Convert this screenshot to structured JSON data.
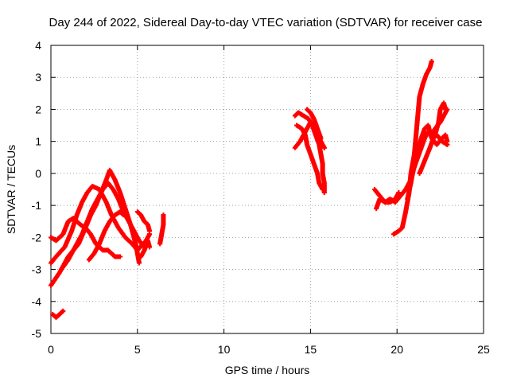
{
  "chart_data": {
    "type": "scatter",
    "title": "Day 244 of 2022, Sidereal Day-to-day VTEC variation (SDTVAR) for receiver case",
    "xlabel": "GPS time / hours",
    "ylabel": "SDTVAR / TECUs",
    "xlim": [
      0,
      25
    ],
    "ylim": [
      -5,
      4
    ],
    "xticks": [
      "0",
      "5",
      "10",
      "15",
      "20",
      "25"
    ],
    "yticks": [
      "-5",
      "-4",
      "-3",
      "-2",
      "-1",
      "0",
      "1",
      "2",
      "3",
      "4"
    ],
    "grid": true,
    "marker": "+",
    "color": "#ff0000",
    "tracks": [
      [
        [
          0.0,
          -3.5
        ],
        [
          0.5,
          -3.1
        ],
        [
          1.0,
          -2.6
        ],
        [
          1.6,
          -2.2
        ],
        [
          2.0,
          -1.7
        ],
        [
          2.3,
          -1.3
        ],
        [
          2.6,
          -1.0
        ],
        [
          2.9,
          -0.6
        ],
        [
          3.2,
          -0.2
        ],
        [
          3.4,
          0.1
        ],
        [
          3.7,
          -0.2
        ],
        [
          4.0,
          -0.6
        ],
        [
          4.3,
          -1.1
        ],
        [
          4.6,
          -1.6
        ],
        [
          4.9,
          -2.2
        ],
        [
          5.1,
          -2.8
        ]
      ],
      [
        [
          0.0,
          -2.8
        ],
        [
          0.3,
          -2.6
        ],
        [
          0.8,
          -2.3
        ],
        [
          1.2,
          -1.8
        ],
        [
          1.5,
          -1.3
        ],
        [
          1.8,
          -0.9
        ],
        [
          2.1,
          -0.6
        ],
        [
          2.4,
          -0.4
        ],
        [
          2.8,
          -0.5
        ],
        [
          3.2,
          -0.9
        ],
        [
          3.5,
          -1.3
        ],
        [
          3.9,
          -1.7
        ],
        [
          4.3,
          -2.0
        ],
        [
          4.7,
          -2.2
        ],
        [
          5.0,
          -2.4
        ],
        [
          5.5,
          -2.1
        ],
        [
          5.7,
          -1.9
        ]
      ],
      [
        [
          0.0,
          -2.0
        ],
        [
          0.3,
          -2.1
        ],
        [
          0.7,
          -1.9
        ],
        [
          1.0,
          -1.5
        ],
        [
          1.3,
          -1.4
        ],
        [
          1.7,
          -1.6
        ],
        [
          2.0,
          -1.7
        ],
        [
          2.3,
          -1.9
        ],
        [
          2.6,
          -2.2
        ],
        [
          3.0,
          -2.4
        ],
        [
          3.3,
          -2.4
        ],
        [
          3.7,
          -2.6
        ],
        [
          4.0,
          -2.6
        ]
      ],
      [
        [
          0.6,
          -3.0
        ],
        [
          1.0,
          -2.7
        ],
        [
          1.4,
          -2.3
        ],
        [
          1.8,
          -1.9
        ],
        [
          2.1,
          -1.5
        ],
        [
          2.4,
          -1.1
        ],
        [
          2.7,
          -0.8
        ],
        [
          3.0,
          -0.5
        ],
        [
          3.3,
          -0.3
        ],
        [
          3.6,
          -0.5
        ],
        [
          3.9,
          -0.8
        ],
        [
          4.2,
          -1.2
        ],
        [
          4.5,
          -1.5
        ],
        [
          4.8,
          -1.8
        ],
        [
          5.1,
          -2.1
        ],
        [
          5.4,
          -2.3
        ]
      ],
      [
        [
          2.2,
          -2.7
        ],
        [
          2.5,
          -2.5
        ],
        [
          2.8,
          -2.2
        ],
        [
          3.1,
          -1.8
        ],
        [
          3.4,
          -1.5
        ],
        [
          3.7,
          -1.3
        ],
        [
          4.0,
          -1.2
        ],
        [
          4.2,
          -1.3
        ]
      ],
      [
        [
          0.1,
          -4.4
        ],
        [
          0.3,
          -4.5
        ],
        [
          0.5,
          -4.4
        ],
        [
          0.7,
          -4.3
        ]
      ],
      [
        [
          5.0,
          -1.2
        ],
        [
          5.2,
          -1.3
        ],
        [
          5.4,
          -1.5
        ],
        [
          5.6,
          -1.6
        ],
        [
          5.7,
          -1.8
        ]
      ],
      [
        [
          5.2,
          -2.6
        ],
        [
          5.4,
          -2.4
        ],
        [
          5.6,
          -2.1
        ],
        [
          5.7,
          -2.3
        ]
      ],
      [
        [
          6.3,
          -2.2
        ],
        [
          6.4,
          -1.9
        ],
        [
          6.5,
          -1.6
        ],
        [
          6.5,
          -1.3
        ]
      ],
      [
        [
          14.1,
          1.8
        ],
        [
          14.3,
          1.9
        ],
        [
          14.6,
          1.8
        ],
        [
          14.9,
          1.7
        ],
        [
          15.1,
          1.5
        ],
        [
          15.3,
          1.2
        ],
        [
          15.5,
          0.9
        ],
        [
          15.6,
          0.6
        ],
        [
          15.7,
          0.3
        ],
        [
          15.7,
          0.0
        ],
        [
          15.8,
          -0.3
        ],
        [
          15.8,
          -0.6
        ]
      ],
      [
        [
          14.2,
          1.5
        ],
        [
          14.5,
          1.4
        ],
        [
          14.7,
          1.2
        ],
        [
          14.8,
          0.9
        ],
        [
          15.0,
          0.6
        ],
        [
          15.2,
          0.3
        ],
        [
          15.4,
          0.0
        ],
        [
          15.5,
          -0.3
        ],
        [
          15.7,
          -0.5
        ]
      ],
      [
        [
          14.1,
          0.8
        ],
        [
          14.4,
          1.0
        ],
        [
          14.6,
          1.2
        ],
        [
          14.8,
          1.4
        ],
        [
          15.0,
          1.6
        ],
        [
          15.2,
          1.5
        ],
        [
          15.4,
          1.3
        ],
        [
          15.6,
          1.0
        ],
        [
          15.8,
          0.8
        ]
      ],
      [
        [
          14.8,
          2.0
        ],
        [
          15.0,
          1.9
        ],
        [
          15.2,
          1.7
        ],
        [
          15.4,
          1.4
        ],
        [
          15.6,
          1.1
        ]
      ],
      [
        [
          18.8,
          -1.1
        ],
        [
          19.0,
          -0.8
        ],
        [
          19.3,
          -0.9
        ],
        [
          19.6,
          -0.8
        ],
        [
          19.9,
          -0.9
        ],
        [
          20.2,
          -0.7
        ],
        [
          20.5,
          -0.5
        ],
        [
          20.8,
          -0.2
        ],
        [
          21.0,
          0.2
        ],
        [
          21.2,
          0.5
        ],
        [
          21.4,
          0.8
        ],
        [
          21.6,
          1.1
        ],
        [
          21.8,
          1.3
        ],
        [
          22.0,
          1.2
        ],
        [
          22.2,
          1.4
        ],
        [
          22.5,
          1.6
        ],
        [
          22.7,
          1.8
        ],
        [
          22.9,
          2.0
        ]
      ],
      [
        [
          18.7,
          -0.5
        ],
        [
          19.0,
          -0.7
        ],
        [
          19.3,
          -0.9
        ],
        [
          19.6,
          -0.9
        ],
        [
          19.9,
          -0.8
        ],
        [
          20.1,
          -0.6
        ]
      ],
      [
        [
          19.8,
          -1.9
        ],
        [
          20.1,
          -1.8
        ],
        [
          20.3,
          -1.7
        ],
        [
          20.5,
          -1.2
        ],
        [
          20.7,
          -0.6
        ],
        [
          20.8,
          0.0
        ],
        [
          21.0,
          0.6
        ],
        [
          21.1,
          1.2
        ],
        [
          21.2,
          1.8
        ],
        [
          21.3,
          2.4
        ],
        [
          21.5,
          2.8
        ],
        [
          21.7,
          3.1
        ],
        [
          21.9,
          3.3
        ],
        [
          22.0,
          3.5
        ]
      ],
      [
        [
          20.6,
          -0.8
        ],
        [
          20.8,
          -0.3
        ],
        [
          21.0,
          0.3
        ],
        [
          21.2,
          0.7
        ],
        [
          21.4,
          1.1
        ],
        [
          21.6,
          1.4
        ],
        [
          21.8,
          1.5
        ],
        [
          22.0,
          1.1
        ],
        [
          22.3,
          0.9
        ],
        [
          22.6,
          1.1
        ],
        [
          22.8,
          1.2
        ],
        [
          22.9,
          1.0
        ]
      ],
      [
        [
          21.3,
          0.0
        ],
        [
          21.6,
          0.4
        ],
        [
          21.9,
          0.8
        ],
        [
          22.1,
          1.1
        ],
        [
          22.3,
          1.2
        ],
        [
          22.6,
          1.0
        ],
        [
          22.9,
          0.9
        ]
      ],
      [
        [
          22.2,
          1.2
        ],
        [
          22.4,
          1.6
        ],
        [
          22.5,
          2.0
        ],
        [
          22.7,
          2.2
        ],
        [
          22.8,
          2.0
        ]
      ]
    ]
  }
}
